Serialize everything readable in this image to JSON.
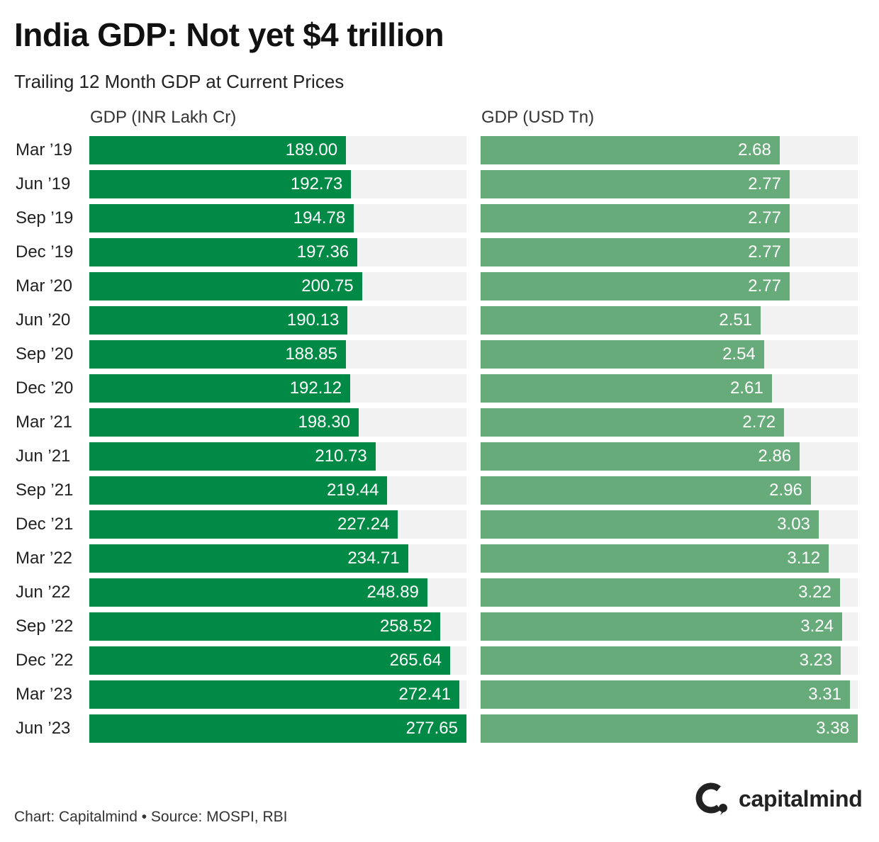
{
  "chart_data": {
    "type": "bar",
    "orientation": "horizontal",
    "title": "India GDP: Not yet $4 trillion",
    "subtitle": "Trailing 12 Month GDP at Current Prices",
    "categories": [
      "Mar ’19",
      "Jun ’19",
      "Sep ’19",
      "Dec ’19",
      "Mar ’20",
      "Jun ’20",
      "Sep ’20",
      "Dec ’20",
      "Mar ’21",
      "Jun ’21",
      "Sep ’21",
      "Dec ’21",
      "Mar ’22",
      "Jun ’22",
      "Sep ’22",
      "Dec ’22",
      "Mar ’23",
      "Jun ’23"
    ],
    "series": [
      {
        "name": "GDP (INR Lakh Cr)",
        "color": "#008a45",
        "values": [
          189.0,
          192.73,
          194.78,
          197.36,
          200.75,
          190.13,
          188.85,
          192.12,
          198.3,
          210.73,
          219.44,
          227.24,
          234.71,
          248.89,
          258.52,
          265.64,
          272.41,
          277.65
        ]
      },
      {
        "name": "GDP (USD Tn)",
        "color": "#68ab7a",
        "values": [
          2.68,
          2.77,
          2.77,
          2.77,
          2.77,
          2.51,
          2.54,
          2.61,
          2.72,
          2.86,
          2.96,
          3.03,
          3.12,
          3.22,
          3.24,
          3.23,
          3.31,
          3.38
        ]
      }
    ],
    "decimals": 2,
    "grid": false,
    "legend": "none"
  },
  "footer": "Chart: Capitalmind • Source: MOSPI, RBI",
  "brand": {
    "name": "capitalmind",
    "color": "#222222"
  },
  "colors": {
    "track": "#f2f2f2",
    "value_text": "#ffffff"
  }
}
